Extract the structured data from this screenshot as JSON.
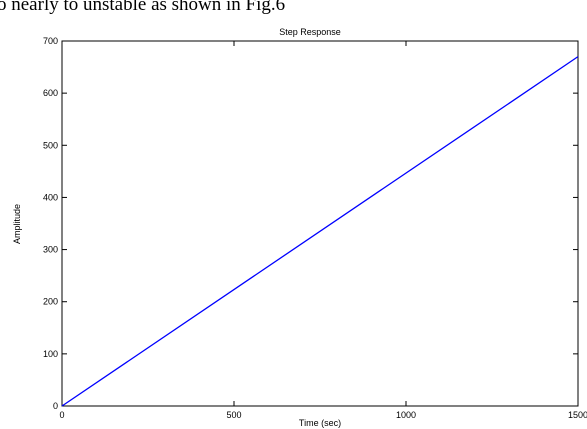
{
  "document_text": "o nearly to unstable as shown in Fig.6",
  "chart_data": {
    "type": "line",
    "title": "Step Response",
    "xlabel": "Time (sec)",
    "ylabel": "Amplitude",
    "x": [
      0,
      1500
    ],
    "series": [
      {
        "color": "#0000ff",
        "values": [
          0,
          670
        ]
      }
    ],
    "xlim": [
      0,
      1500
    ],
    "xticks": [
      0,
      500,
      1000,
      1500
    ],
    "ylim": [
      0,
      700
    ],
    "yticks": [
      0,
      100,
      200,
      300,
      400,
      500,
      600,
      700
    ],
    "grid": false
  }
}
